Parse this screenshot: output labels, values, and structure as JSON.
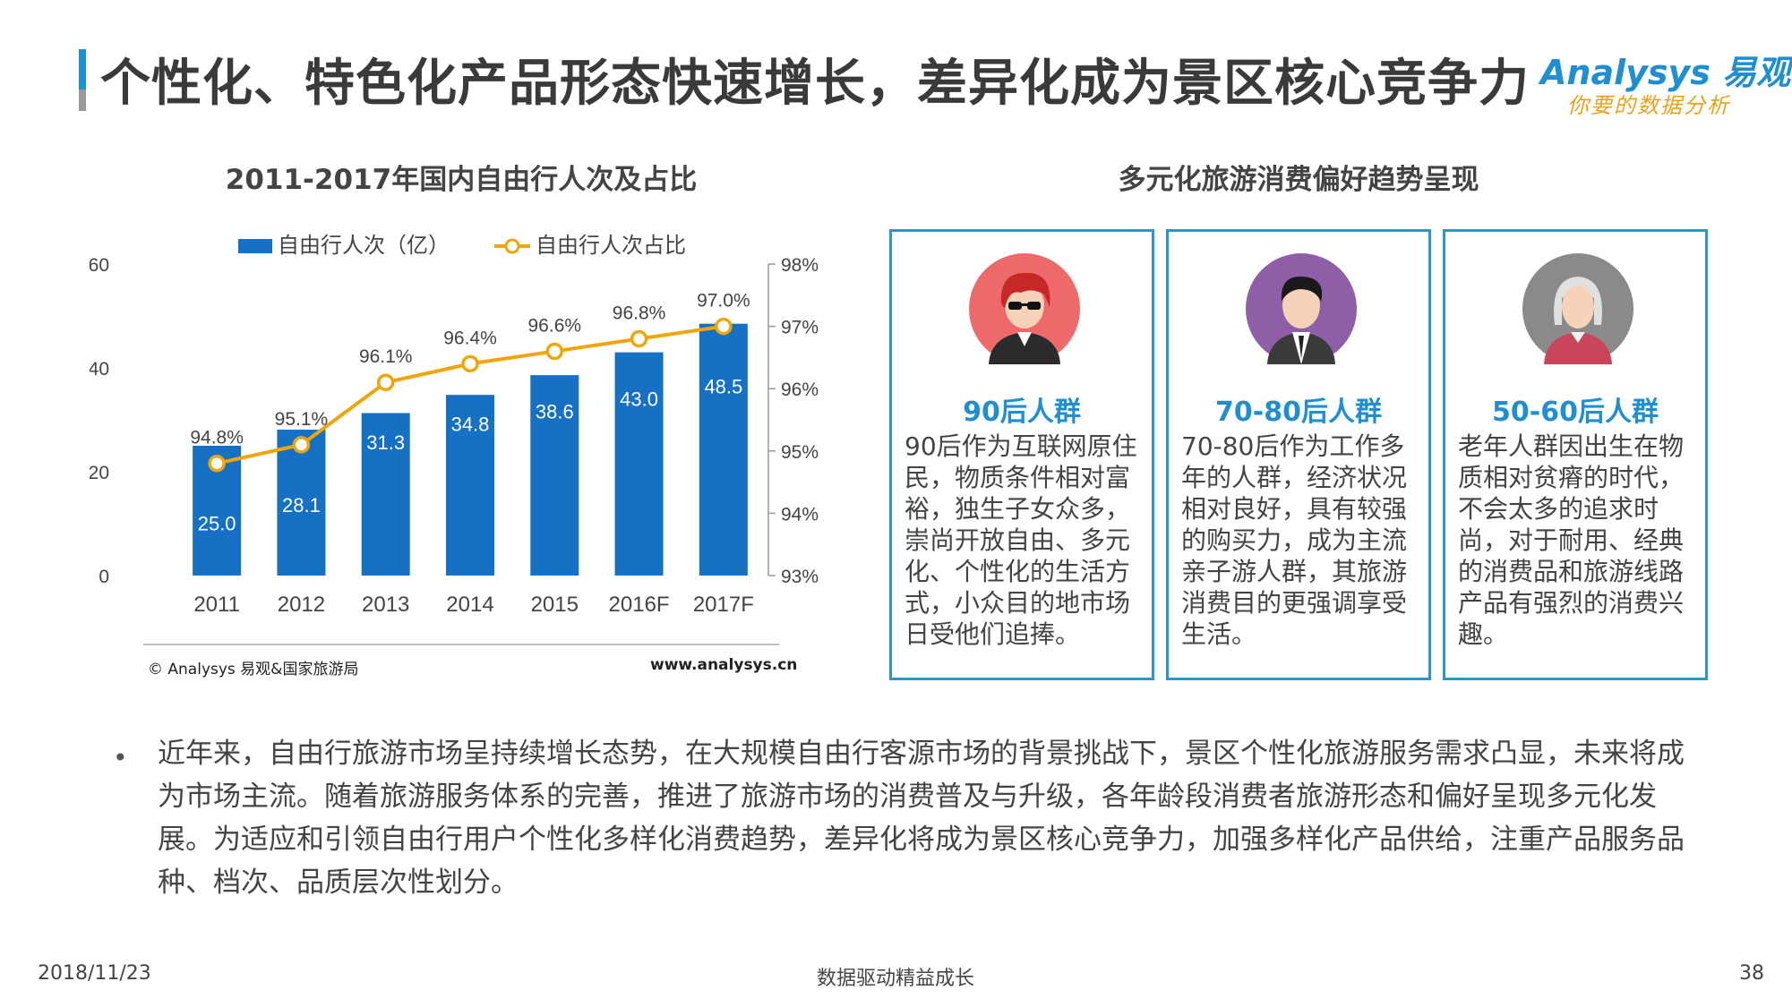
{
  "page": {
    "title": "个性化、特色化产品形态快速增长，差异化成为景区核心竞争力",
    "logo_main": "Analysys 易观",
    "logo_sub": "你要的数据分析"
  },
  "colors": {
    "accent": "#1f8fd1",
    "bar": "#1670c4",
    "line": "#f0a50a"
  },
  "chart_data": {
    "type": "bar",
    "title": "2011-2017年国内自由行人次及占比",
    "categories": [
      "2011",
      "2012",
      "2013",
      "2014",
      "2015",
      "2016F",
      "2017F"
    ],
    "series": [
      {
        "name": "自由行人次（亿）",
        "type": "bar",
        "axis": "left",
        "values": [
          25.0,
          28.1,
          31.3,
          34.8,
          38.6,
          43.0,
          48.5
        ],
        "labels": [
          "25.0",
          "28.1",
          "31.3",
          "34.8",
          "38.6",
          "43.0",
          "48.5"
        ]
      },
      {
        "name": "自由行人次占比",
        "type": "line",
        "axis": "right",
        "values": [
          94.8,
          95.1,
          96.1,
          96.4,
          96.6,
          96.8,
          97.0
        ],
        "labels": [
          "94.8%",
          "95.1%",
          "96.1%",
          "96.4%",
          "96.6%",
          "96.8%",
          "97.0%"
        ]
      }
    ],
    "y_left": {
      "ylim": [
        0,
        60
      ],
      "ticks": [
        "0",
        "20",
        "40",
        "60"
      ],
      "tick_values": [
        0,
        20,
        40,
        60
      ]
    },
    "y_right": {
      "ylim": [
        93,
        98
      ],
      "ticks": [
        "93%",
        "94%",
        "95%",
        "96%",
        "97%",
        "98%"
      ],
      "tick_values": [
        93,
        94,
        95,
        96,
        97,
        98
      ]
    },
    "legend_position": "top",
    "grid": false,
    "source": "© Analysys 易观&国家旅游局",
    "website": "www.analysys.cn"
  },
  "preferences": {
    "title": "多元化旅游消费偏好趋势呈现",
    "groups": [
      {
        "name": "90后人群",
        "icon": "young-person-avatar-icon",
        "desc": "90后作为互联网原住民，物质条件相对富裕，独生子女众多，崇尚开放自由、多元化、个性化的生活方式，小众目的地市场日受他们追捧。"
      },
      {
        "name": "70-80后人群",
        "icon": "middle-aged-person-avatar-icon",
        "desc": "70-80后作为工作多年的人群，经济状况相对良好，具有较强的购买力，成为主流亲子游人群，其旅游消费目的更强调享受生活。"
      },
      {
        "name": "50-60后人群",
        "icon": "elderly-person-avatar-icon",
        "desc": "老年人群因出生在物质相对贫瘠的时代，不会太多的追求时尚，对于耐用、经典的消费品和旅游线路产品有强烈的消费兴趣。"
      }
    ]
  },
  "body": {
    "text": "近年来，自由行旅游市场呈持续增长态势，在大规模自由行客源市场的背景挑战下，景区个性化旅游服务需求凸显，未来将成为市场主流。随着旅游服务体系的完善，推进了旅游市场的消费普及与升级，各年龄段消费者旅游形态和偏好呈现多元化发展。为适应和引领自由行用户个性化多样化消费趋势，差异化将成为景区核心竞争力，加强多样化产品供给，注重产品服务品种、档次、品质层次性划分。"
  },
  "footer": {
    "date": "2018/11/23",
    "slogan": "数据驱动精益成长",
    "page": "38"
  }
}
